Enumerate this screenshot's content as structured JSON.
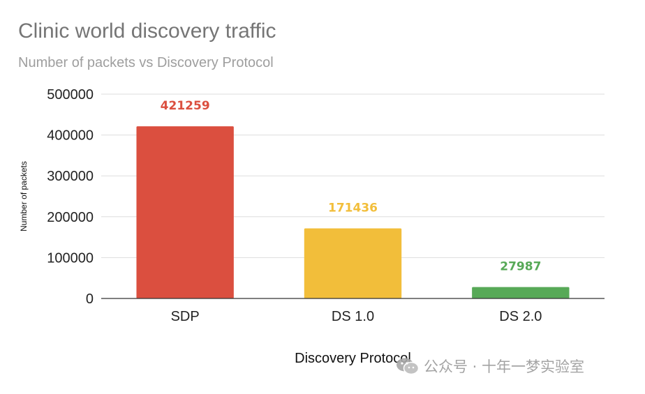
{
  "chart_data": {
    "type": "bar",
    "title": "Clinic world discovery traffic",
    "subtitle": "Number of packets vs Discovery Protocol",
    "xlabel": "Discovery Protocol",
    "ylabel": "Number of packets",
    "categories": [
      "SDP",
      "DS 1.0",
      "DS 2.0"
    ],
    "values": [
      421259,
      171436,
      27987
    ],
    "colors": [
      "#db4f3f",
      "#f2be3a",
      "#57a957"
    ],
    "ylim": [
      0,
      500000
    ],
    "yticks": [
      "0",
      "100000",
      "200000",
      "300000",
      "400000",
      "500000"
    ],
    "grid": true,
    "legend": "none"
  },
  "watermark": {
    "icon": "wechat-icon",
    "text": "公众号 · 十年一梦实验室"
  }
}
